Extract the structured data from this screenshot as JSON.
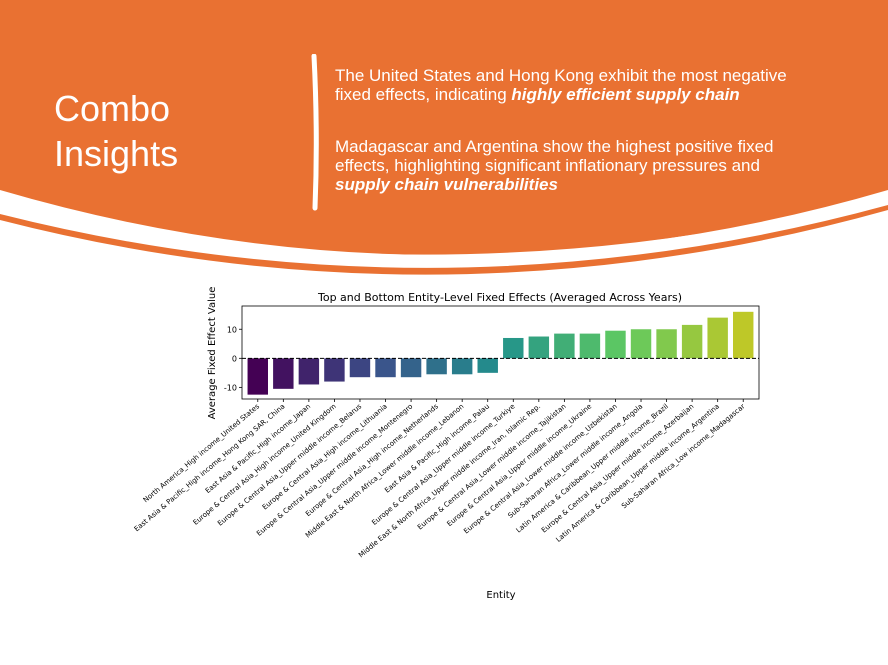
{
  "slide": {
    "title_line1": "Combo",
    "title_line2": "Insights",
    "insights": [
      {
        "text": "The United States and Hong Kong exhibit the most negative fixed effects, indicating ",
        "emphasis": "highly efficient supply chain",
        "tail": ""
      },
      {
        "text": "Madagascar and Argentina show the highest positive fixed effects, highlighting significant inflationary pressures and ",
        "emphasis": "supply chain vulnerabilities",
        "tail": ""
      }
    ],
    "colors": {
      "accent": "#E97132",
      "background": "#FFFFFF"
    }
  },
  "chart_data": {
    "type": "bar",
    "title": "Top and Bottom Entity-Level Fixed Effects (Averaged Across Years)",
    "xlabel": "Entity",
    "ylabel": "Average Fixed Effect Value",
    "ylim": [
      -14,
      18
    ],
    "yticks": [
      -10,
      0,
      10
    ],
    "reference_line": 0,
    "grid": false,
    "palette": "viridis",
    "categories": [
      "North America_High income_United States",
      "East Asia & Pacific_High income_Hong Kong SAR, China",
      "East Asia & Pacific_High income_Japan",
      "Europe & Central Asia_High income_United Kingdom",
      "Europe & Central Asia_Upper middle income_Belarus",
      "Europe & Central Asia_High income_Lithuania",
      "Europe & Central Asia_Upper middle income_Montenegro",
      "Europe & Central Asia_High income_Netherlands",
      "Middle East & North Africa_Lower middle income_Lebanon",
      "East Asia & Pacific_High income_Palau",
      "Europe & Central Asia_Upper middle income_Turkiye",
      "Middle East & North Africa_Upper middle income_Iran, Islamic Rep.",
      "Europe & Central Asia_Lower middle income_Tajikistan",
      "Europe & Central Asia_Upper middle income_Ukraine",
      "Europe & Central Asia_Lower middle income_Uzbekistan",
      "Sub-Saharan Africa_Lower middle income_Angola",
      "Latin America & Caribbean_Upper middle income_Brazil",
      "Europe & Central Asia_Upper middle income_Azerbaijan",
      "Latin America & Caribbean_Upper middle income_Argentina",
      "Sub-Saharan Africa_Low income_Madagascar"
    ],
    "values": [
      -12.5,
      -10.5,
      -9.0,
      -8.0,
      -6.5,
      -6.5,
      -6.5,
      -5.5,
      -5.5,
      -5.0,
      7.0,
      7.5,
      8.5,
      8.5,
      9.5,
      10.0,
      10.0,
      11.5,
      14.0,
      16.0
    ]
  }
}
